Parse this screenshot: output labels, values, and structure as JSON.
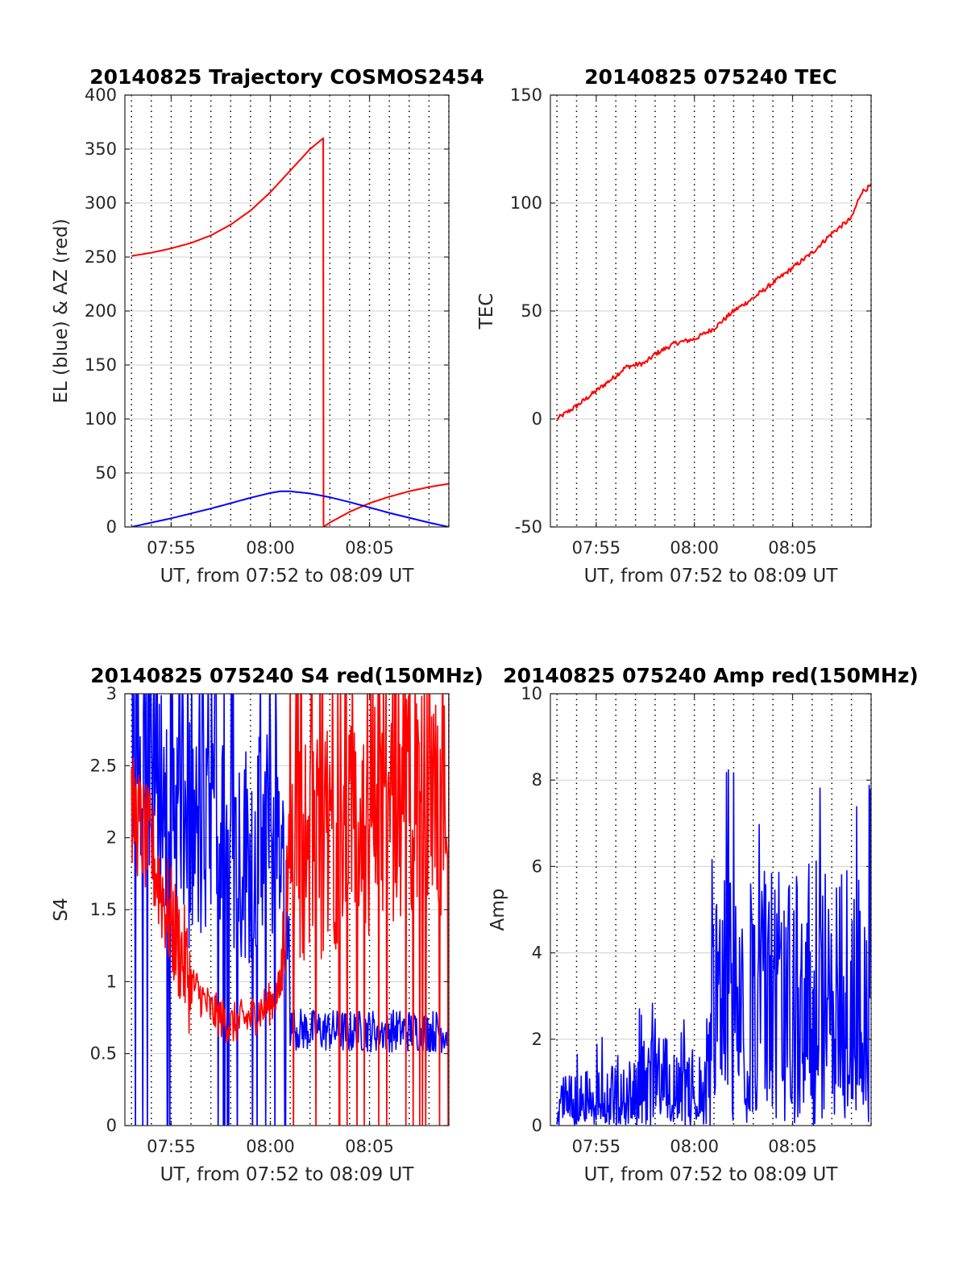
{
  "figure": {
    "background": "#ffffff"
  },
  "colors": {
    "red": "#ff0000",
    "blue": "#0000ff",
    "grid": "#d0d0d0",
    "vgrid": "#000000",
    "axis": "#262626"
  },
  "chart_data": [
    {
      "id": "trajectory",
      "type": "line",
      "title": "20140825 Trajectory COSMOS2454",
      "xlabel": "UT, from 07:52 to 08:09 UT",
      "ylabel": "EL (blue) & AZ (red)",
      "xlim": [
        "07:52:40",
        "08:09:00"
      ],
      "ylim": [
        0,
        400
      ],
      "xticks": [
        "07:55",
        "08:00",
        "08:05"
      ],
      "yticks": [
        0,
        50,
        100,
        150,
        200,
        250,
        300,
        350,
        400
      ],
      "grid": "horizontal solid, vertical dotted every 1 min",
      "series": [
        {
          "color": "red",
          "x": [
            "07:53:00",
            "07:54:00",
            "07:55:00",
            "07:56:00",
            "07:57:00",
            "07:58:00",
            "07:59:00",
            "08:00:00",
            "08:01:00",
            "08:02:00",
            "08:02:40",
            "08:02:41",
            "08:03:00",
            "08:04:00",
            "08:05:00",
            "08:06:00",
            "08:07:00",
            "08:08:00",
            "08:09:00"
          ],
          "y": [
            251,
            254,
            258,
            263,
            270,
            280,
            293,
            310,
            330,
            350,
            360,
            0,
            4,
            14,
            22,
            28,
            33,
            37,
            40
          ]
        },
        {
          "color": "blue",
          "x": [
            "07:53:00",
            "07:54:00",
            "07:55:00",
            "07:56:00",
            "07:57:00",
            "07:58:00",
            "07:59:00",
            "08:00:00",
            "08:00:30",
            "08:01:00",
            "08:02:00",
            "08:03:00",
            "08:04:00",
            "08:05:00",
            "08:06:00",
            "08:07:00",
            "08:08:00",
            "08:09:00"
          ],
          "y": [
            0,
            4,
            8,
            12.5,
            17,
            22,
            27,
            31.5,
            33,
            33,
            31,
            27.5,
            23,
            18,
            13,
            8.5,
            4,
            0
          ]
        }
      ]
    },
    {
      "id": "tec",
      "type": "line",
      "title": "20140825 075240 TEC",
      "xlabel": "UT, from 07:52 to 08:09 UT",
      "ylabel": "TEC",
      "xlim": [
        "07:52:40",
        "08:09:00"
      ],
      "ylim": [
        -50,
        150
      ],
      "xticks": [
        "07:55",
        "08:00",
        "08:05"
      ],
      "yticks": [
        -50,
        0,
        50,
        100,
        150
      ],
      "grid": "horizontal solid, vertical dotted every 1 min",
      "series": [
        {
          "color": "red",
          "x": [
            "07:53:00",
            "07:54:00",
            "07:55:00",
            "07:56:00",
            "07:56:30",
            "07:57:00",
            "07:57:30",
            "07:58:00",
            "07:59:00",
            "08:00:00",
            "08:01:00",
            "08:02:00",
            "08:03:00",
            "08:04:00",
            "08:05:00",
            "08:06:00",
            "08:07:00",
            "08:08:00",
            "08:08:30",
            "08:09:00"
          ],
          "y": [
            0,
            6,
            13,
            20,
            24,
            25,
            26,
            30,
            35,
            37,
            42,
            50,
            56,
            63,
            70,
            77,
            86,
            93,
            105,
            108
          ]
        }
      ]
    },
    {
      "id": "s4",
      "type": "line",
      "title": "20140825 075240 S4 red(150MHz)",
      "xlabel": "UT, from 07:52 to 08:09 UT",
      "ylabel": "S4",
      "xlim": [
        "07:52:40",
        "08:09:00"
      ],
      "ylim": [
        0,
        3
      ],
      "xticks": [
        "07:55",
        "08:00",
        "08:05"
      ],
      "yticks": [
        "0",
        "0.5",
        "1",
        "1.5",
        "2",
        "2.5",
        "3"
      ],
      "grid": "horizontal solid, vertical dotted every 1 min",
      "series": [
        {
          "color": "blue",
          "x": [
            "07:53:00",
            "07:54:00",
            "07:55:00",
            "07:56:00",
            "07:57:00",
            "07:58:00",
            "07:59:00",
            "08:00:00",
            "08:00:30",
            "08:01:00",
            "08:02:00",
            "08:03:00",
            "08:04:00",
            "08:05:00",
            "08:06:00",
            "08:07:00",
            "08:08:00",
            "08:09:00"
          ],
          "y": [
            2.6,
            2.5,
            2.2,
            2.0,
            2.0,
            1.9,
            1.9,
            2.0,
            2.2,
            0.68,
            0.66,
            0.66,
            0.65,
            0.66,
            0.66,
            0.66,
            0.66,
            0.65
          ]
        },
        {
          "color": "red",
          "x": [
            "07:53:00",
            "07:54:00",
            "07:55:00",
            "07:56:00",
            "07:57:00",
            "07:58:00",
            "07:59:00",
            "08:00:00",
            "08:00:30",
            "08:01:00",
            "08:02:00",
            "08:03:00",
            "08:04:00",
            "08:05:00",
            "08:06:00",
            "08:07:00",
            "08:08:00",
            "08:09:00"
          ],
          "y": [
            2.2,
            1.9,
            1.4,
            1.0,
            0.8,
            0.7,
            0.75,
            0.85,
            0.95,
            2.0,
            1.9,
            2.0,
            2.0,
            2.1,
            2.2,
            2.2,
            2.3,
            2.2
          ]
        }
      ]
    },
    {
      "id": "amp",
      "type": "line",
      "title": "20140825 075240 Amp red(150MHz)",
      "xlabel": "UT, from 07:52 to 08:09 UT",
      "ylabel": "Amp",
      "xlim": [
        "07:52:40",
        "08:09:00"
      ],
      "ylim": [
        0,
        10
      ],
      "xticks": [
        "07:55",
        "08:00",
        "08:05"
      ],
      "yticks": [
        0,
        2,
        4,
        6,
        8,
        10
      ],
      "grid": "horizontal solid, vertical dotted every 1 min",
      "series": [
        {
          "color": "blue",
          "x": [
            "07:53:00",
            "07:54:00",
            "07:55:00",
            "07:56:00",
            "07:57:00",
            "07:58:00",
            "07:59:00",
            "08:00:00",
            "08:00:30",
            "08:01:00",
            "08:02:00",
            "08:03:00",
            "08:04:00",
            "08:05:00",
            "08:06:00",
            "08:07:00",
            "08:08:00",
            "08:09:00"
          ],
          "y": [
            1.0,
            1.1,
            1.2,
            1.6,
            1.8,
            1.9,
            1.8,
            1.6,
            1.3,
            5.2,
            5.4,
            5.4,
            5.5,
            5.5,
            5.6,
            5.5,
            5.6,
            5.5
          ]
        }
      ]
    }
  ]
}
